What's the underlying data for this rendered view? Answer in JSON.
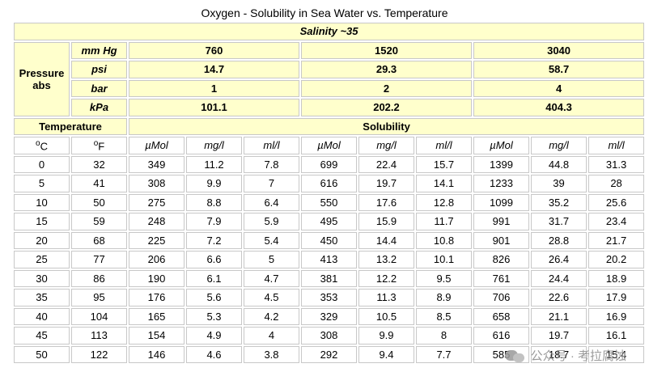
{
  "title": "Oxygen - Solubility in Sea Water vs. Temperature",
  "salinity_label": "Salinity ~35",
  "pressure_label_line1": "Pressure",
  "pressure_label_line2": "abs",
  "pressure_rows": [
    {
      "unit": "mm Hg",
      "values": [
        "760",
        "1520",
        "3040"
      ]
    },
    {
      "unit": "psi",
      "values": [
        "14.7",
        "29.3",
        "58.7"
      ]
    },
    {
      "unit": "bar",
      "values": [
        "1",
        "2",
        "4"
      ]
    },
    {
      "unit": "kPa",
      "values": [
        "101.1",
        "202.2",
        "404.3"
      ]
    }
  ],
  "temperature_label": "Temperature",
  "solubility_label": "Solubility",
  "temp_units": {
    "c_sup": "o",
    "c": "C",
    "f_sup": "o",
    "f": "F"
  },
  "sol_units": [
    "µMol",
    "mg/l",
    "ml/l",
    "µMol",
    "mg/l",
    "ml/l",
    "µMol",
    "mg/l",
    "ml/l"
  ],
  "rows": [
    [
      "0",
      "32",
      "349",
      "11.2",
      "7.8",
      "699",
      "22.4",
      "15.7",
      "1399",
      "44.8",
      "31.3"
    ],
    [
      "5",
      "41",
      "308",
      "9.9",
      "7",
      "616",
      "19.7",
      "14.1",
      "1233",
      "39",
      "28"
    ],
    [
      "10",
      "50",
      "275",
      "8.8",
      "6.4",
      "550",
      "17.6",
      "12.8",
      "1099",
      "35.2",
      "25.6"
    ],
    [
      "15",
      "59",
      "248",
      "7.9",
      "5.9",
      "495",
      "15.9",
      "11.7",
      "991",
      "31.7",
      "23.4"
    ],
    [
      "20",
      "68",
      "225",
      "7.2",
      "5.4",
      "450",
      "14.4",
      "10.8",
      "901",
      "28.8",
      "21.7"
    ],
    [
      "25",
      "77",
      "206",
      "6.6",
      "5",
      "413",
      "13.2",
      "10.1",
      "826",
      "26.4",
      "20.2"
    ],
    [
      "30",
      "86",
      "190",
      "6.1",
      "4.7",
      "381",
      "12.2",
      "9.5",
      "761",
      "24.4",
      "18.9"
    ],
    [
      "35",
      "95",
      "176",
      "5.6",
      "4.5",
      "353",
      "11.3",
      "8.9",
      "706",
      "22.6",
      "17.9"
    ],
    [
      "40",
      "104",
      "165",
      "5.3",
      "4.2",
      "329",
      "10.5",
      "8.5",
      "658",
      "21.1",
      "16.9"
    ],
    [
      "45",
      "113",
      "154",
      "4.9",
      "4",
      "308",
      "9.9",
      "8",
      "616",
      "19.7",
      "16.1"
    ],
    [
      "50",
      "122",
      "146",
      "4.6",
      "3.8",
      "292",
      "9.4",
      "7.7",
      "585",
      "18.7",
      "15.4"
    ]
  ],
  "watermark": {
    "icon": "wechat-icon",
    "text": "公众号 · 考拉腐蚀"
  }
}
